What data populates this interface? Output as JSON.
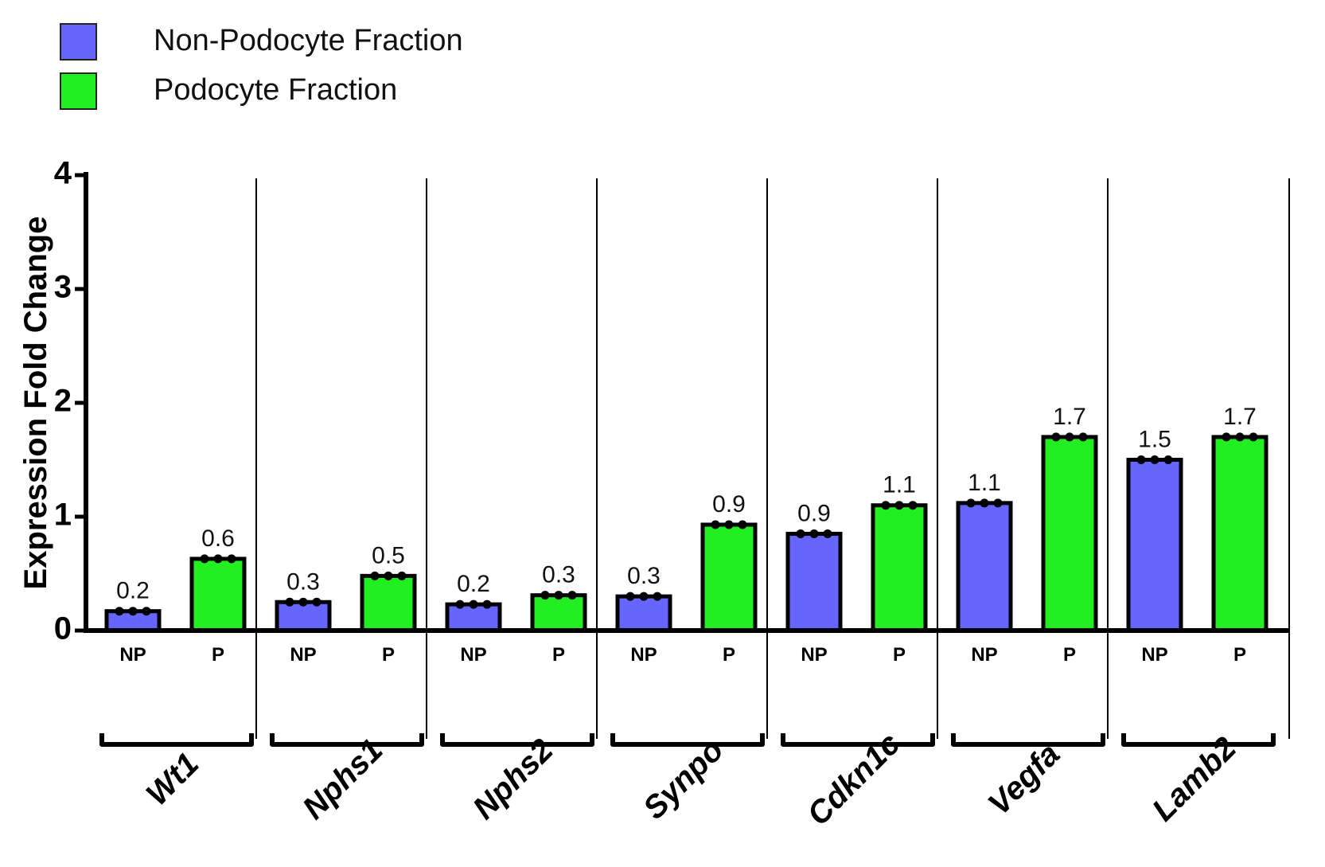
{
  "chart_data": {
    "type": "bar",
    "ylabel": "Expression Fold Change",
    "ylim": [
      0,
      4
    ],
    "yticks": [
      0,
      1,
      2,
      3,
      4
    ],
    "grid": false,
    "legend_position": "top-left",
    "legend": [
      {
        "label": "Non-Podocyte Fraction",
        "color": "#6666ff"
      },
      {
        "label": "Podocyte Fraction",
        "color": "#22ee22"
      }
    ],
    "groups": [
      {
        "gene": "Wt1",
        "bars": [
          {
            "category": "NP",
            "value": 0.17,
            "label": "0.2"
          },
          {
            "category": "P",
            "value": 0.63,
            "label": "0.6"
          }
        ]
      },
      {
        "gene": "Nphs1",
        "bars": [
          {
            "category": "NP",
            "value": 0.25,
            "label": "0.3"
          },
          {
            "category": "P",
            "value": 0.48,
            "label": "0.5"
          }
        ]
      },
      {
        "gene": "Nphs2",
        "bars": [
          {
            "category": "NP",
            "value": 0.23,
            "label": "0.2"
          },
          {
            "category": "P",
            "value": 0.31,
            "label": "0.3"
          }
        ]
      },
      {
        "gene": "Synpo",
        "bars": [
          {
            "category": "NP",
            "value": 0.3,
            "label": "0.3"
          },
          {
            "category": "P",
            "value": 0.93,
            "label": "0.9"
          }
        ]
      },
      {
        "gene": "Cdkn1c",
        "bars": [
          {
            "category": "NP",
            "value": 0.85,
            "label": "0.9"
          },
          {
            "category": "P",
            "value": 1.1,
            "label": "1.1"
          }
        ]
      },
      {
        "gene": "Vegfa",
        "bars": [
          {
            "category": "NP",
            "value": 1.12,
            "label": "1.1"
          },
          {
            "category": "P",
            "value": 1.7,
            "label": "1.7"
          }
        ]
      },
      {
        "gene": "Lamb2",
        "bars": [
          {
            "category": "NP",
            "value": 1.5,
            "label": "1.5"
          },
          {
            "category": "P",
            "value": 1.7,
            "label": "1.7"
          }
        ]
      }
    ]
  }
}
